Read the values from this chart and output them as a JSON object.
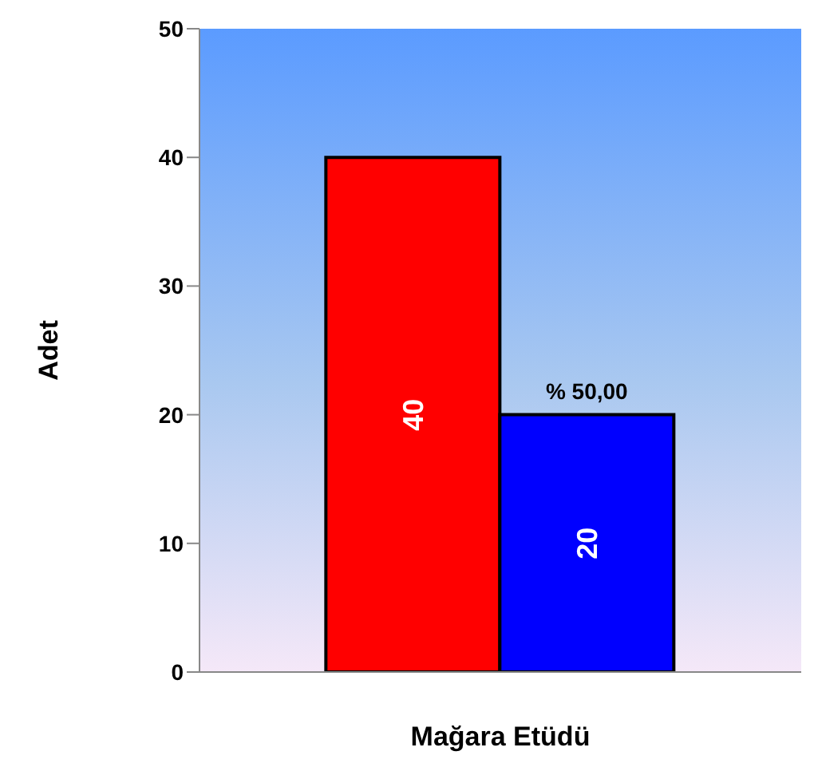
{
  "chart_data": {
    "type": "bar",
    "ylabel": "Adet",
    "xlabel": "Mağara Etüdü",
    "categories": [
      "Mağara Etüdü"
    ],
    "series": [
      {
        "color": "#ff0000",
        "values": [
          40
        ]
      },
      {
        "color": "#0000ff",
        "values": [
          20
        ]
      }
    ],
    "ylim": [
      0,
      50
    ],
    "yticks": [
      0,
      10,
      20,
      30,
      40,
      50
    ],
    "grid": false,
    "legend": false,
    "data_labels": true,
    "annotations": [
      {
        "text": "% 50,00",
        "x": "Mağara Etüdü",
        "y": 20
      }
    ]
  }
}
